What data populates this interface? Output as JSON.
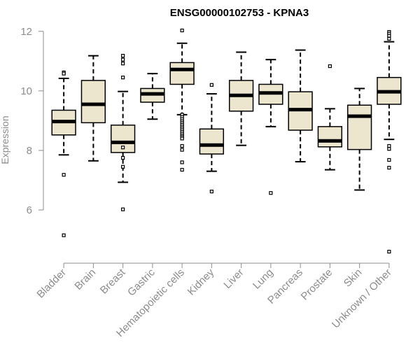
{
  "chart_data": {
    "type": "boxplot",
    "title": "ENSG00000102753 - KPNA3",
    "xlabel": "",
    "ylabel": "Expression",
    "ylim": [
      4.4,
      12.3
    ],
    "yticks": [
      6,
      8,
      10,
      12
    ],
    "box_fill": "#ede6cf",
    "categories": [
      "Bladder",
      "Brain",
      "Breast",
      "Gastric",
      "Hematopoietic cells",
      "Kidney",
      "Liver",
      "Lung",
      "Pancreas",
      "Prostate",
      "Skin",
      "Unknown / Other"
    ],
    "boxes": [
      {
        "name": "Bladder",
        "whisker_low": 7.85,
        "q1": 8.52,
        "median": 8.97,
        "q3": 9.35,
        "whisker_high": 10.42,
        "outliers": [
          10.62,
          10.58,
          7.18,
          5.15
        ]
      },
      {
        "name": "Brain",
        "whisker_low": 7.65,
        "q1": 8.93,
        "median": 9.55,
        "q3": 10.35,
        "whisker_high": 11.18,
        "outliers": []
      },
      {
        "name": "Breast",
        "whisker_low": 6.93,
        "q1": 7.93,
        "median": 8.27,
        "q3": 8.85,
        "whisker_high": 9.98,
        "outliers": [
          11.18,
          11.05,
          10.92,
          10.45,
          8.1,
          7.75,
          7.45,
          6.02
        ]
      },
      {
        "name": "Gastric",
        "whisker_low": 9.05,
        "q1": 9.62,
        "median": 9.9,
        "q3": 10.08,
        "whisker_high": 10.58,
        "outliers": []
      },
      {
        "name": "Hematopoietic cells",
        "whisker_low": 9.2,
        "q1": 10.22,
        "median": 10.72,
        "q3": 10.95,
        "whisker_high": 11.6,
        "outliers": [
          12.03,
          9.2,
          9.12,
          9.05,
          8.98,
          8.92,
          8.86,
          8.8,
          8.74,
          8.68,
          8.62,
          8.56,
          8.5,
          8.45,
          8.4,
          8.15,
          8.02,
          7.6,
          7.35
        ]
      },
      {
        "name": "Kidney",
        "whisker_low": 7.3,
        "q1": 7.88,
        "median": 8.18,
        "q3": 8.72,
        "whisker_high": 9.9,
        "outliers": [
          10.2,
          6.62
        ]
      },
      {
        "name": "Liver",
        "whisker_low": 8.17,
        "q1": 9.32,
        "median": 9.85,
        "q3": 10.35,
        "whisker_high": 11.3,
        "outliers": []
      },
      {
        "name": "Lung",
        "whisker_low": 8.8,
        "q1": 9.55,
        "median": 9.93,
        "q3": 10.22,
        "whisker_high": 11.05,
        "outliers": [
          6.57
        ]
      },
      {
        "name": "Pancreas",
        "whisker_low": 7.62,
        "q1": 8.68,
        "median": 9.37,
        "q3": 9.97,
        "whisker_high": 11.37,
        "outliers": []
      },
      {
        "name": "Prostate",
        "whisker_low": 7.35,
        "q1": 8.12,
        "median": 8.32,
        "q3": 8.8,
        "whisker_high": 9.4,
        "outliers": [
          10.83
        ]
      },
      {
        "name": "Skin",
        "whisker_low": 6.67,
        "q1": 8.03,
        "median": 9.15,
        "q3": 9.52,
        "whisker_high": 10.08,
        "outliers": []
      },
      {
        "name": "Unknown / Other",
        "whisker_low": 8.37,
        "q1": 9.55,
        "median": 9.97,
        "q3": 10.45,
        "whisker_high": 11.65,
        "outliers": [
          11.98,
          11.92,
          11.85,
          11.75,
          8.15,
          8.05,
          7.68,
          7.42,
          4.6
        ]
      }
    ]
  }
}
